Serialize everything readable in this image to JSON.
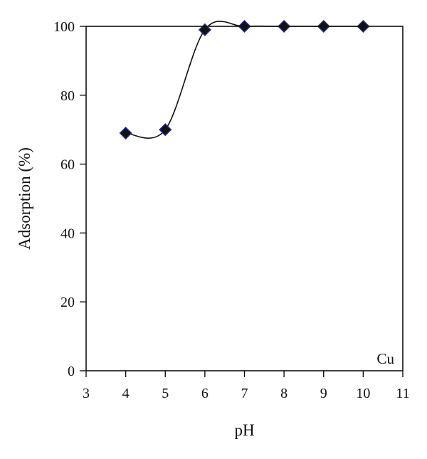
{
  "chart_data": {
    "type": "scatter",
    "xlabel": "pH",
    "ylabel": "Adsorption (%)",
    "xlim": [
      3,
      11
    ],
    "ylim": [
      0,
      100
    ],
    "x_ticks": [
      3,
      4,
      5,
      6,
      7,
      8,
      9,
      10,
      11
    ],
    "y_ticks": [
      0,
      20,
      40,
      60,
      80,
      100
    ],
    "grid": false,
    "annotation": "Cu",
    "series": [
      {
        "marker": "diamond",
        "marker_color": "#111111",
        "marker_edge_color": "#1f2a8a",
        "line": "smooth",
        "x": [
          4,
          5,
          6,
          7,
          8,
          9,
          10
        ],
        "y": [
          69,
          70,
          99,
          100,
          100,
          100,
          100
        ]
      }
    ]
  }
}
